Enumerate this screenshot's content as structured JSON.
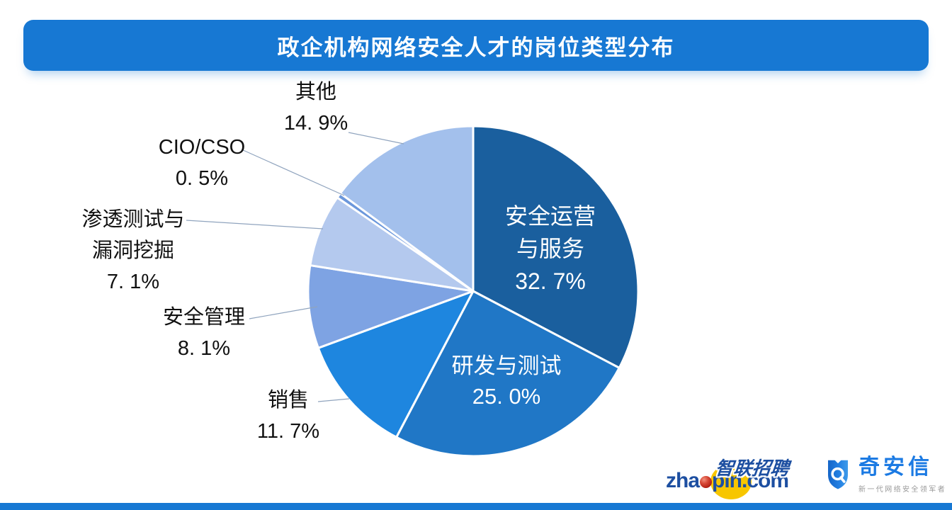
{
  "title": "政企机构网络安全人才的岗位类型分布",
  "chart_data": {
    "type": "pie",
    "title": "政企机构网络安全人才的岗位类型分布",
    "start_angle": "12-oclock",
    "direction": "clockwise",
    "unit": "%",
    "segments": [
      {
        "label": "安全运营与服务",
        "label_lines": [
          "安全运营",
          "与服务"
        ],
        "value": 32.7,
        "display": "32. 7%",
        "color": "#1A5F9E",
        "label_placement": "inside"
      },
      {
        "label": "研发与测试",
        "value": 25.0,
        "display": "25. 0%",
        "color": "#2077C6",
        "label_placement": "inside"
      },
      {
        "label": "销售",
        "value": 11.7,
        "display": "11. 7%",
        "color": "#1E86DF",
        "label_placement": "outside"
      },
      {
        "label": "安全管理",
        "value": 8.1,
        "display": "8. 1%",
        "color": "#7EA3E3",
        "label_placement": "outside"
      },
      {
        "label": "渗透测试与漏洞挖掘",
        "label_lines": [
          "渗透测试与",
          "漏洞挖掘"
        ],
        "value": 7.1,
        "display": "7. 1%",
        "color": "#B4C9EE",
        "label_placement": "outside"
      },
      {
        "label": "CIO/CSO",
        "value": 0.5,
        "display": "0. 5%",
        "color": "#6B97DB",
        "label_placement": "outside"
      },
      {
        "label": "其他",
        "value": 14.9,
        "display": "14. 9%",
        "color": "#A3C0EC",
        "label_placement": "outside"
      }
    ]
  },
  "footer": {
    "zhaopin": {
      "cn": "智联招聘",
      "en_prefix": "zha",
      "en_suffix": "pin.com"
    },
    "qianxin": {
      "name": "奇安信",
      "tagline": "新一代网络安全领军者"
    }
  },
  "colors": {
    "accent_blue": "#1778D3",
    "leader_line": "#90A4BE",
    "zhaopin_navy": "#1D4FA1",
    "zhaopin_yellow": "#F7C600",
    "zhaopin_red": "#B01E12",
    "qianxin_blue": "#1B7AE3",
    "tagline_gray": "#9A9A9A"
  }
}
